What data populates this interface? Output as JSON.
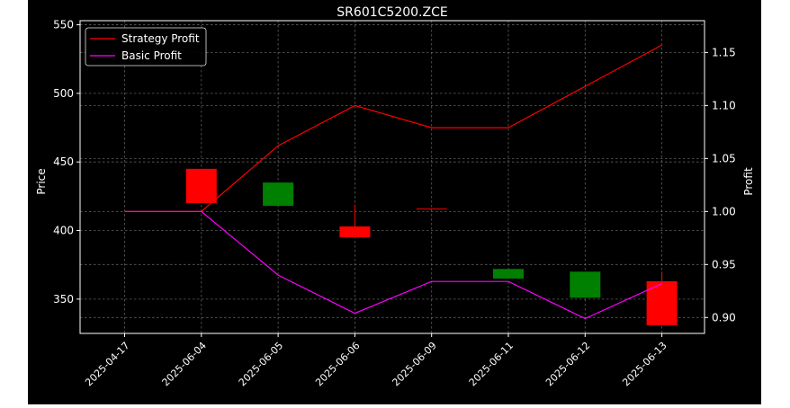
{
  "chart_data": {
    "type": "candlestick",
    "title": "SR601C5200.ZCE",
    "xlabel": "",
    "ylabel": "Price",
    "y2label": "Profit",
    "categories": [
      "2025-04-17",
      "2025-06-04",
      "2025-06-05",
      "2025-06-06",
      "2025-06-09",
      "2025-06-11",
      "2025-06-12",
      "2025-06-13"
    ],
    "ylim": [
      325,
      553
    ],
    "y2lim": [
      0.885,
      1.18
    ],
    "yticks": [
      350,
      400,
      450,
      500,
      550
    ],
    "y2ticks": [
      0.9,
      0.95,
      1.0,
      1.05,
      1.1,
      1.15
    ],
    "y2ticklabels": [
      "0.90",
      "0.95",
      "1.00",
      "1.05",
      "1.10",
      "1.15"
    ],
    "grid": true,
    "legend_position": "top-left",
    "candles": [
      {
        "date": "2025-04-17",
        "open": null,
        "close": null,
        "high": null,
        "low": null
      },
      {
        "date": "2025-06-04",
        "open": 420,
        "close": 445,
        "high": 445,
        "low": 420,
        "color": "red"
      },
      {
        "date": "2025-06-05",
        "open": 435,
        "close": 418,
        "high": 435,
        "low": 418,
        "color": "green"
      },
      {
        "date": "2025-06-06",
        "open": 395,
        "close": 403,
        "high": 419,
        "low": 395,
        "color": "red"
      },
      {
        "date": "2025-06-09",
        "open": 416,
        "close": 416,
        "high": 416,
        "low": 416,
        "color": "red"
      },
      {
        "date": "2025-06-11",
        "open": 372,
        "close": 365,
        "high": 372,
        "low": 365,
        "color": "green"
      },
      {
        "date": "2025-06-12",
        "open": 370,
        "close": 351,
        "high": 370,
        "low": 351,
        "color": "green"
      },
      {
        "date": "2025-06-13",
        "open": 331,
        "close": 363,
        "high": 370,
        "low": 331,
        "color": "red"
      }
    ],
    "series": [
      {
        "name": "Strategy Profit",
        "color": "#ff0000",
        "values": [
          1.0,
          1.0,
          1.062,
          1.1,
          1.079,
          1.079,
          1.118,
          1.157
        ]
      },
      {
        "name": "Basic Profit",
        "color": "#ff00ff",
        "values": [
          1.0,
          1.0,
          0.94,
          0.904,
          0.934,
          0.934,
          0.899,
          0.932
        ]
      }
    ],
    "colors": {
      "up": "#ff0000",
      "down": "#008000",
      "background": "#000000",
      "outer": "#ffffff",
      "axis": "#ffffff",
      "grid": "#888888"
    }
  }
}
